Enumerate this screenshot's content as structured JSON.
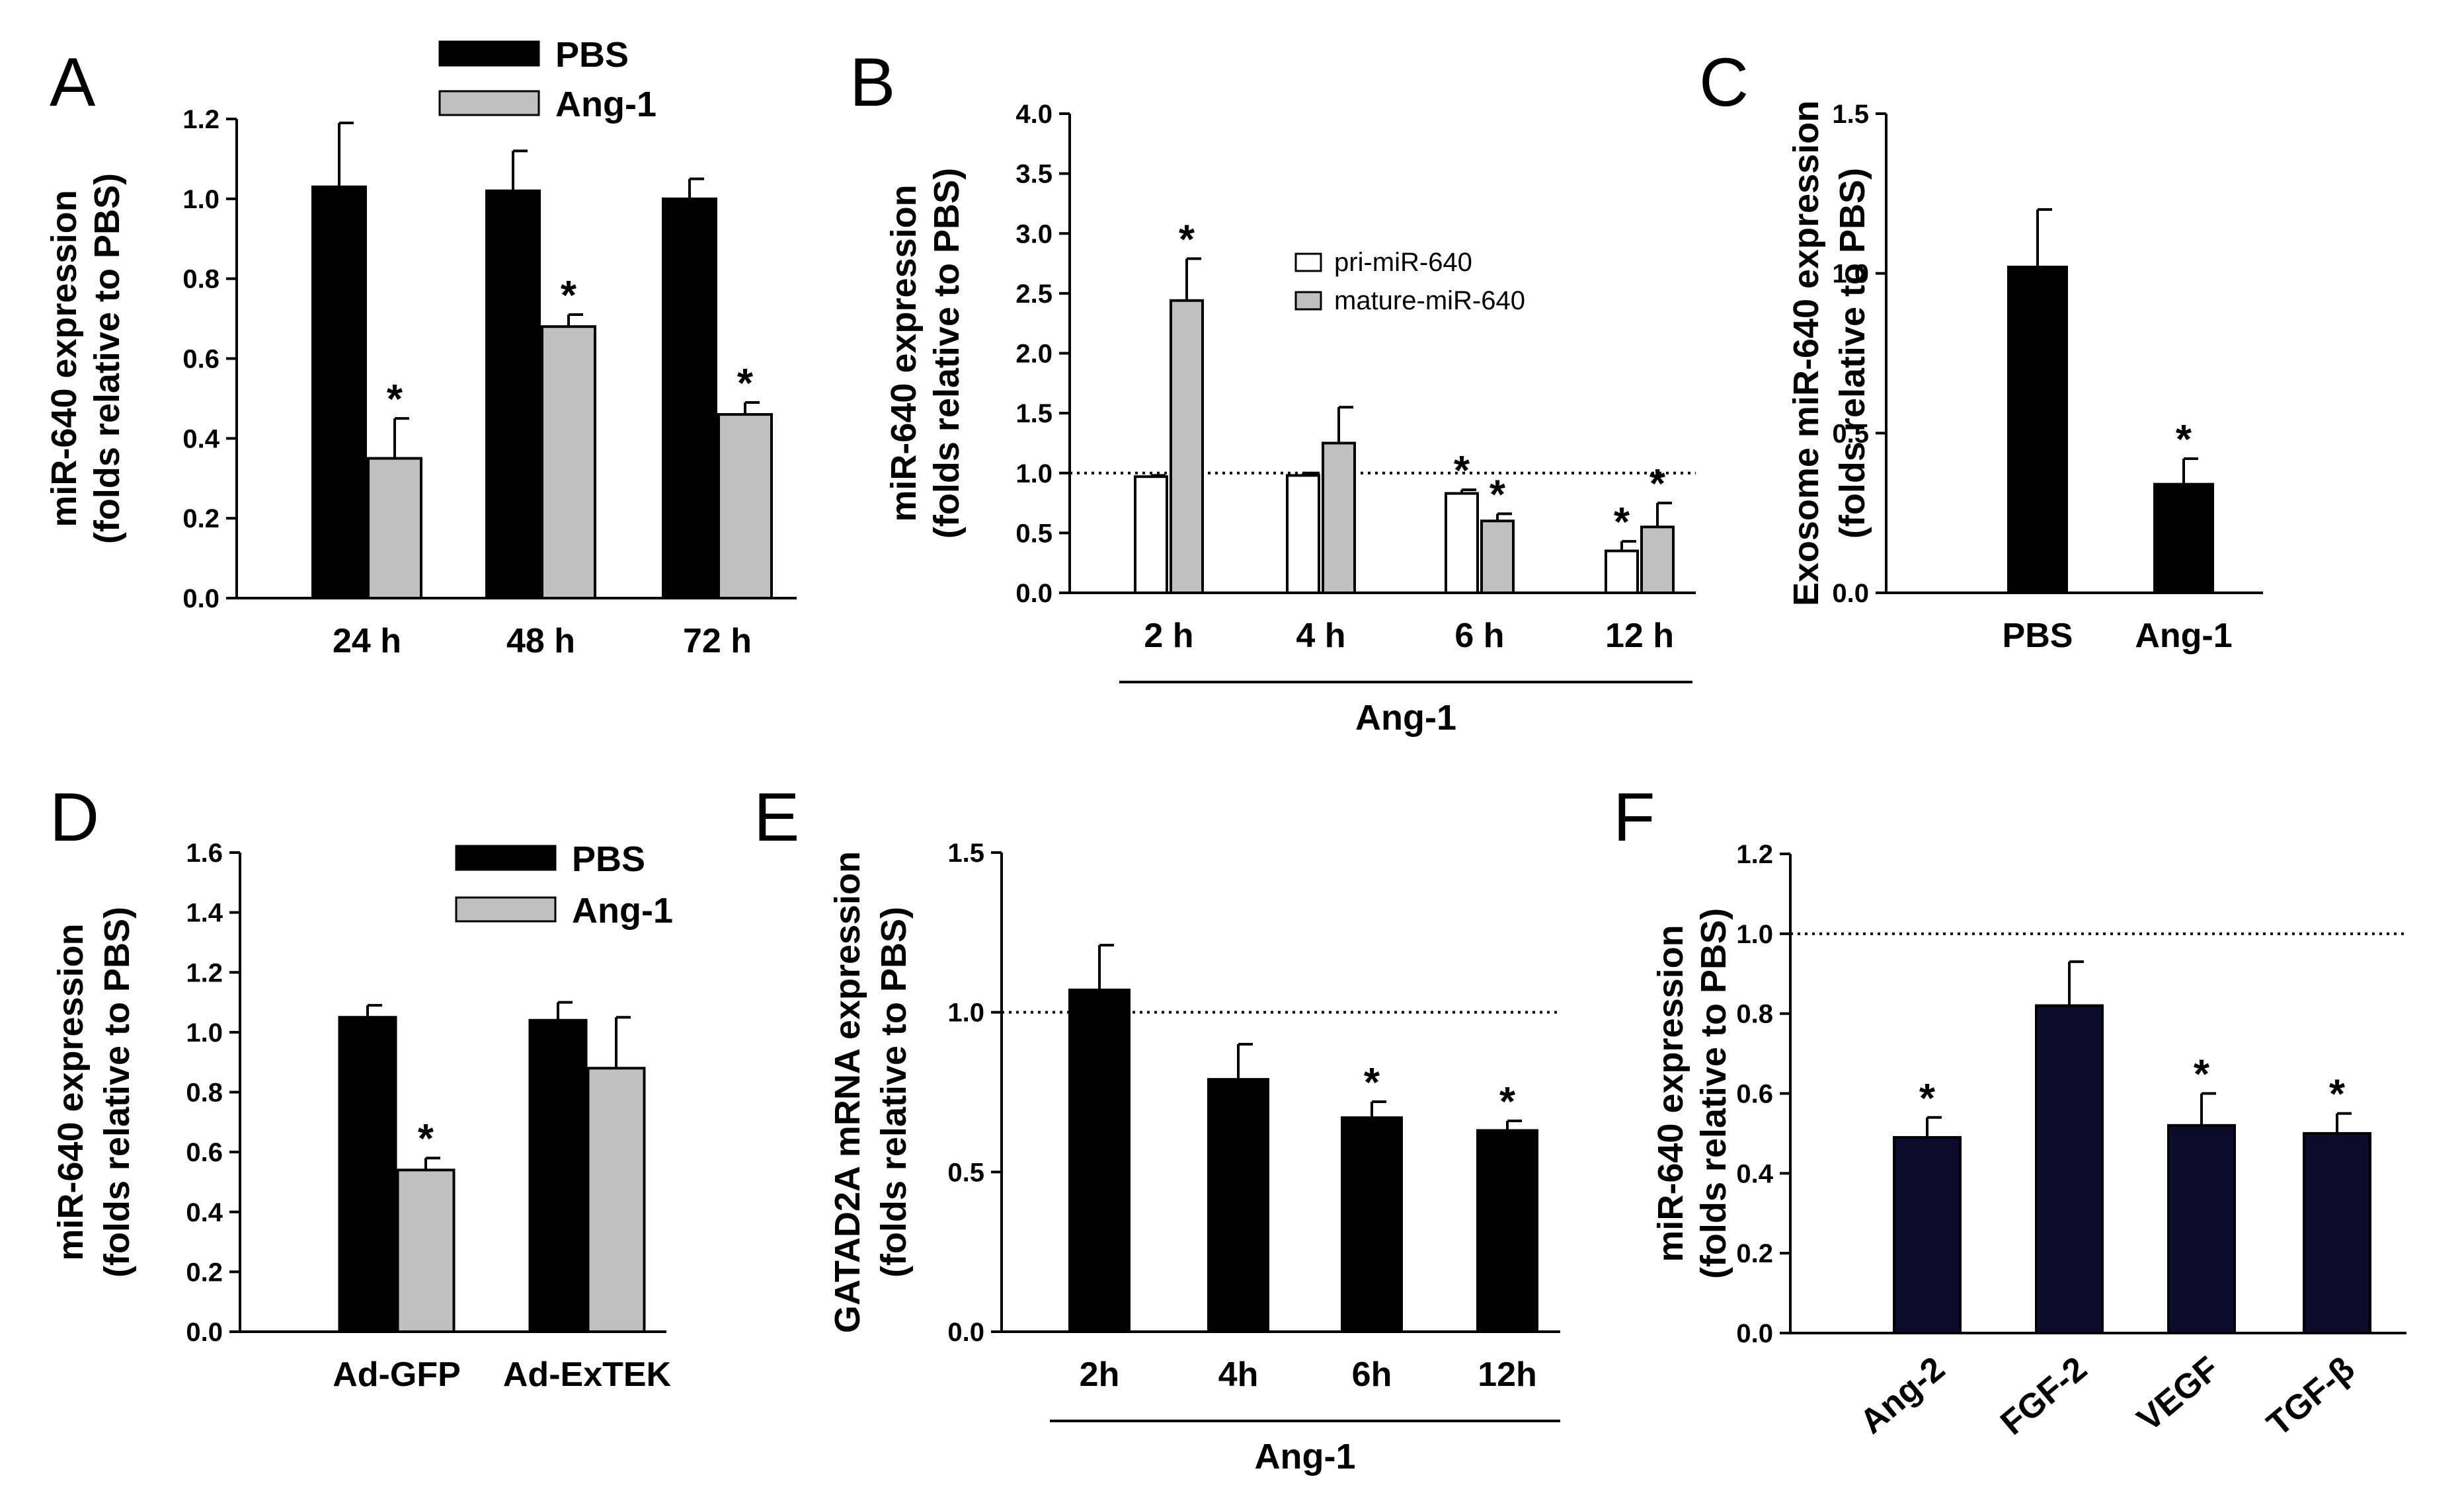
{
  "chart_data": [
    {
      "panel": "A",
      "type": "bar",
      "categories": [
        "24 h",
        "48 h",
        "72 h"
      ],
      "series": [
        {
          "name": "PBS",
          "values": [
            1.03,
            1.02,
            1.0
          ],
          "errors": [
            0.16,
            0.1,
            0.05
          ],
          "color": "#000000",
          "stars": [
            false,
            false,
            false
          ]
        },
        {
          "name": "Ang-1",
          "values": [
            0.35,
            0.68,
            0.46
          ],
          "errors": [
            0.1,
            0.03,
            0.03
          ],
          "color": "#c0c0c0",
          "stars": [
            true,
            true,
            true
          ]
        }
      ],
      "ylabel": [
        "miR-640 expression",
        "(folds relative to PBS)"
      ],
      "ylim": [
        0,
        1.2
      ],
      "yticks": [
        "0.0",
        "0.2",
        "0.4",
        "0.6",
        "0.8",
        "1.0",
        "1.2"
      ],
      "legend": "top"
    },
    {
      "panel": "B",
      "type": "bar",
      "categories": [
        "2 h",
        "4 h",
        "6 h",
        "12 h"
      ],
      "series": [
        {
          "name": "pri-miR-640",
          "values": [
            0.97,
            0.98,
            0.83,
            0.35
          ],
          "errors": [
            0.01,
            0.02,
            0.03,
            0.08
          ],
          "color": "#ffffff",
          "stars": [
            false,
            false,
            true,
            true
          ]
        },
        {
          "name": "mature-miR-640",
          "values": [
            2.44,
            1.25,
            0.6,
            0.55
          ],
          "errors": [
            0.35,
            0.3,
            0.06,
            0.2
          ],
          "color": "#c0c0c0",
          "stars": [
            true,
            false,
            true,
            true
          ]
        }
      ],
      "ylabel": [
        "miR-640 expression",
        "(folds relative to PBS)"
      ],
      "ylim": [
        0,
        4.0
      ],
      "yticks": [
        "0.0",
        "0.5",
        "1.0",
        "1.5",
        "2.0",
        "2.5",
        "3.0",
        "3.5",
        "4.0"
      ],
      "reference_line": 1.0,
      "group_label": "Ang-1",
      "legend": "center"
    },
    {
      "panel": "C",
      "type": "bar",
      "categories": [
        "PBS",
        "Ang-1"
      ],
      "values": [
        1.02,
        0.34
      ],
      "errors": [
        0.18,
        0.08
      ],
      "stars": [
        false,
        true
      ],
      "color": "#000000",
      "ylabel": [
        "Exosome miR-640 expression",
        "(folds relative to PBS)"
      ],
      "ylim": [
        0,
        1.5
      ],
      "yticks": [
        "0.0",
        "0.5",
        "1.0",
        "1.5"
      ]
    },
    {
      "panel": "D",
      "type": "bar",
      "categories": [
        "Ad-GFP",
        "Ad-ExTEK"
      ],
      "series": [
        {
          "name": "PBS",
          "values": [
            1.05,
            1.04
          ],
          "errors": [
            0.04,
            0.06
          ],
          "color": "#000000",
          "stars": [
            false,
            false
          ]
        },
        {
          "name": "Ang-1",
          "values": [
            0.54,
            0.88
          ],
          "errors": [
            0.04,
            0.17
          ],
          "color": "#c0c0c0",
          "stars": [
            true,
            false
          ]
        }
      ],
      "ylabel": [
        "miR-640 expression",
        "(folds relative to PBS)"
      ],
      "ylim": [
        0,
        1.6
      ],
      "yticks": [
        "0.0",
        "0.2",
        "0.4",
        "0.6",
        "0.8",
        "1.0",
        "1.2",
        "1.4",
        "1.6"
      ],
      "legend": "top"
    },
    {
      "panel": "E",
      "type": "bar",
      "categories": [
        "2h",
        "4h",
        "6h",
        "12h"
      ],
      "values": [
        1.07,
        0.79,
        0.67,
        0.63
      ],
      "errors": [
        0.14,
        0.11,
        0.05,
        0.03
      ],
      "stars": [
        false,
        false,
        true,
        true
      ],
      "color": "#000000",
      "ylabel": [
        "GATAD2A mRNA expression",
        "(folds relative to PBS)"
      ],
      "ylim": [
        0,
        1.5
      ],
      "yticks": [
        "0.0",
        "0.5",
        "1.0",
        "1.5"
      ],
      "reference_line": 1.0,
      "group_label": "Ang-1"
    },
    {
      "panel": "F",
      "type": "bar",
      "categories": [
        "Ang-2",
        "FGF-2",
        "VEGF",
        "TGF-β"
      ],
      "values": [
        0.49,
        0.82,
        0.52,
        0.5
      ],
      "errors": [
        0.05,
        0.11,
        0.08,
        0.05
      ],
      "stars": [
        true,
        false,
        true,
        true
      ],
      "color": "#0b0b2a",
      "ylabel": [
        "miR-640 expression",
        "(folds relative to PBS)"
      ],
      "ylim": [
        0,
        1.2
      ],
      "yticks": [
        "0.0",
        "0.2",
        "0.4",
        "0.6",
        "0.8",
        "1.0",
        "1.2"
      ],
      "reference_line": 1.0,
      "xtick_rotation": -40
    }
  ]
}
